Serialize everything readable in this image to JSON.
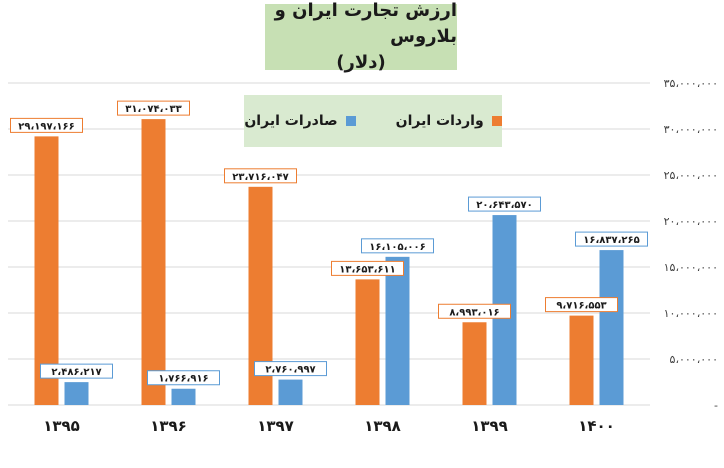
{
  "chart_data": {
    "type": "bar",
    "title": "ارزش تجارت ایران و بلاروس",
    "subtitle": "(دلار)",
    "categories": [
      "۱۳۹۵",
      "۱۳۹۶",
      "۱۳۹۷",
      "۱۳۹۸",
      "۱۳۹۹",
      "۱۴۰۰"
    ],
    "series": [
      {
        "name": "واردات ایران",
        "color": "#ed7d31",
        "values": [
          29197166,
          31074033,
          23716047,
          13653611,
          8993016,
          9716553
        ],
        "labels": [
          "۲۹،۱۹۷،۱۶۶",
          "۳۱،۰۷۴،۰۳۳",
          "۲۳،۷۱۶،۰۴۷",
          "۱۳،۶۵۳،۶۱۱",
          "۸،۹۹۳،۰۱۶",
          "۹،۷۱۶،۵۵۳"
        ]
      },
      {
        "name": "صادرات ایران",
        "color": "#5b9bd5",
        "values": [
          2486217,
          1766916,
          2760997,
          16105006,
          20643570,
          16837265
        ],
        "labels": [
          "۲،۴۸۶،۲۱۷",
          "۱،۷۶۶،۹۱۶",
          "۲،۷۶۰،۹۹۷",
          "۱۶،۱۰۵،۰۰۶",
          "۲۰،۶۴۳،۵۷۰",
          "۱۶،۸۳۷،۲۶۵"
        ]
      }
    ],
    "ylim": [
      0,
      35000000
    ],
    "yticks": [
      0,
      5000000,
      10000000,
      15000000,
      20000000,
      25000000,
      30000000,
      35000000
    ],
    "ytick_labels": [
      "-",
      "۵،۰۰۰،۰۰۰",
      "۱۰،۰۰۰،۰۰۰",
      "۱۵،۰۰۰،۰۰۰",
      "۲۰،۰۰۰،۰۰۰",
      "۲۵،۰۰۰،۰۰۰",
      "۳۰،۰۰۰،۰۰۰",
      "۳۵،۰۰۰،۰۰۰"
    ],
    "y_axis_side": "right",
    "grid": true,
    "legend": "top-center"
  },
  "colors": {
    "title_bg": "#c7e0b4",
    "legend_bg": "#d9ead0",
    "grid": "#d9d9d9"
  }
}
